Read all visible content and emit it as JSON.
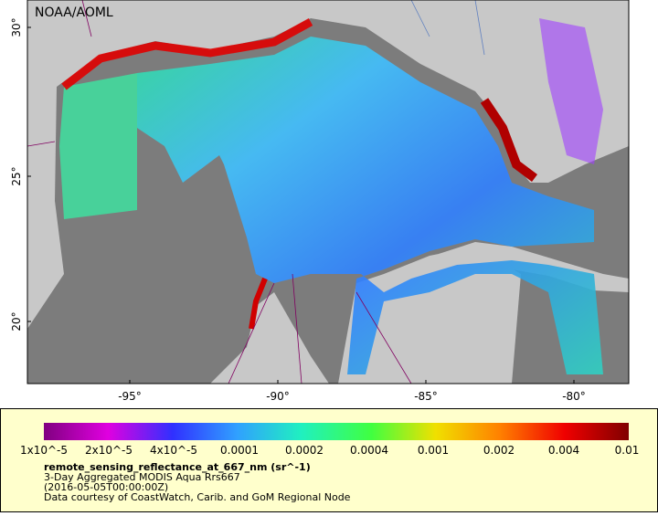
{
  "map": {
    "credit": "NOAA/AOML",
    "lat_ticks": [
      "30°",
      "25°",
      "20°"
    ],
    "lon_ticks": [
      "-95°",
      "-90°",
      "-85°",
      "-80°"
    ]
  },
  "legend": {
    "ticks": [
      "1x10^-5",
      "2x10^-5",
      "4x10^-5",
      "0.0001",
      "0.0002",
      "0.0004",
      "0.001",
      "0.002",
      "0.004",
      "0.01"
    ],
    "title": "remote_sensing_reflectance_at_667_nm (sr^-1)",
    "lines": [
      "3-Day Aggregated MODIS Aqua Rrs667",
      "(2016-05-05T00:00:00Z)",
      "Data courtesy of CoastWatch, Carib. and GoM Regional Node"
    ]
  }
}
